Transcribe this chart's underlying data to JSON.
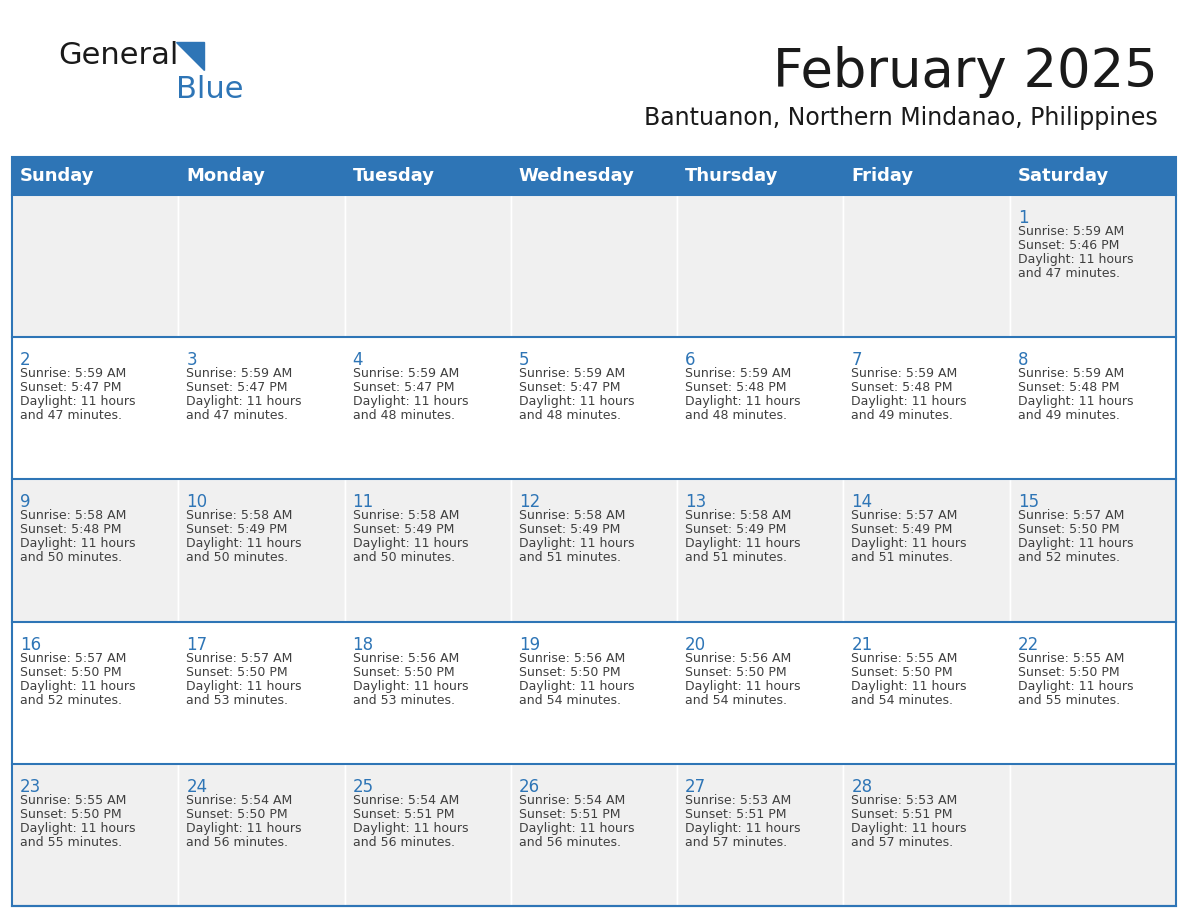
{
  "title": "February 2025",
  "subtitle": "Bantuanon, Northern Mindanao, Philippines",
  "header_bg_color": "#2E75B6",
  "header_text_color": "#FFFFFF",
  "row_bg_colors": [
    "#F0F0F0",
    "#FFFFFF",
    "#F0F0F0",
    "#FFFFFF",
    "#F0F0F0"
  ],
  "day_number_color": "#2E75B6",
  "text_color": "#404040",
  "border_color": "#2E75B6",
  "days_of_week": [
    "Sunday",
    "Monday",
    "Tuesday",
    "Wednesday",
    "Thursday",
    "Friday",
    "Saturday"
  ],
  "calendar": [
    [
      {
        "day": null,
        "sunrise": null,
        "sunset": null,
        "daylight_line1": null,
        "daylight_line2": null
      },
      {
        "day": null,
        "sunrise": null,
        "sunset": null,
        "daylight_line1": null,
        "daylight_line2": null
      },
      {
        "day": null,
        "sunrise": null,
        "sunset": null,
        "daylight_line1": null,
        "daylight_line2": null
      },
      {
        "day": null,
        "sunrise": null,
        "sunset": null,
        "daylight_line1": null,
        "daylight_line2": null
      },
      {
        "day": null,
        "sunrise": null,
        "sunset": null,
        "daylight_line1": null,
        "daylight_line2": null
      },
      {
        "day": null,
        "sunrise": null,
        "sunset": null,
        "daylight_line1": null,
        "daylight_line2": null
      },
      {
        "day": "1",
        "sunrise": "Sunrise: 5:59 AM",
        "sunset": "Sunset: 5:46 PM",
        "daylight_line1": "Daylight: 11 hours",
        "daylight_line2": "and 47 minutes."
      }
    ],
    [
      {
        "day": "2",
        "sunrise": "Sunrise: 5:59 AM",
        "sunset": "Sunset: 5:47 PM",
        "daylight_line1": "Daylight: 11 hours",
        "daylight_line2": "and 47 minutes."
      },
      {
        "day": "3",
        "sunrise": "Sunrise: 5:59 AM",
        "sunset": "Sunset: 5:47 PM",
        "daylight_line1": "Daylight: 11 hours",
        "daylight_line2": "and 47 minutes."
      },
      {
        "day": "4",
        "sunrise": "Sunrise: 5:59 AM",
        "sunset": "Sunset: 5:47 PM",
        "daylight_line1": "Daylight: 11 hours",
        "daylight_line2": "and 48 minutes."
      },
      {
        "day": "5",
        "sunrise": "Sunrise: 5:59 AM",
        "sunset": "Sunset: 5:47 PM",
        "daylight_line1": "Daylight: 11 hours",
        "daylight_line2": "and 48 minutes."
      },
      {
        "day": "6",
        "sunrise": "Sunrise: 5:59 AM",
        "sunset": "Sunset: 5:48 PM",
        "daylight_line1": "Daylight: 11 hours",
        "daylight_line2": "and 48 minutes."
      },
      {
        "day": "7",
        "sunrise": "Sunrise: 5:59 AM",
        "sunset": "Sunset: 5:48 PM",
        "daylight_line1": "Daylight: 11 hours",
        "daylight_line2": "and 49 minutes."
      },
      {
        "day": "8",
        "sunrise": "Sunrise: 5:59 AM",
        "sunset": "Sunset: 5:48 PM",
        "daylight_line1": "Daylight: 11 hours",
        "daylight_line2": "and 49 minutes."
      }
    ],
    [
      {
        "day": "9",
        "sunrise": "Sunrise: 5:58 AM",
        "sunset": "Sunset: 5:48 PM",
        "daylight_line1": "Daylight: 11 hours",
        "daylight_line2": "and 50 minutes."
      },
      {
        "day": "10",
        "sunrise": "Sunrise: 5:58 AM",
        "sunset": "Sunset: 5:49 PM",
        "daylight_line1": "Daylight: 11 hours",
        "daylight_line2": "and 50 minutes."
      },
      {
        "day": "11",
        "sunrise": "Sunrise: 5:58 AM",
        "sunset": "Sunset: 5:49 PM",
        "daylight_line1": "Daylight: 11 hours",
        "daylight_line2": "and 50 minutes."
      },
      {
        "day": "12",
        "sunrise": "Sunrise: 5:58 AM",
        "sunset": "Sunset: 5:49 PM",
        "daylight_line1": "Daylight: 11 hours",
        "daylight_line2": "and 51 minutes."
      },
      {
        "day": "13",
        "sunrise": "Sunrise: 5:58 AM",
        "sunset": "Sunset: 5:49 PM",
        "daylight_line1": "Daylight: 11 hours",
        "daylight_line2": "and 51 minutes."
      },
      {
        "day": "14",
        "sunrise": "Sunrise: 5:57 AM",
        "sunset": "Sunset: 5:49 PM",
        "daylight_line1": "Daylight: 11 hours",
        "daylight_line2": "and 51 minutes."
      },
      {
        "day": "15",
        "sunrise": "Sunrise: 5:57 AM",
        "sunset": "Sunset: 5:50 PM",
        "daylight_line1": "Daylight: 11 hours",
        "daylight_line2": "and 52 minutes."
      }
    ],
    [
      {
        "day": "16",
        "sunrise": "Sunrise: 5:57 AM",
        "sunset": "Sunset: 5:50 PM",
        "daylight_line1": "Daylight: 11 hours",
        "daylight_line2": "and 52 minutes."
      },
      {
        "day": "17",
        "sunrise": "Sunrise: 5:57 AM",
        "sunset": "Sunset: 5:50 PM",
        "daylight_line1": "Daylight: 11 hours",
        "daylight_line2": "and 53 minutes."
      },
      {
        "day": "18",
        "sunrise": "Sunrise: 5:56 AM",
        "sunset": "Sunset: 5:50 PM",
        "daylight_line1": "Daylight: 11 hours",
        "daylight_line2": "and 53 minutes."
      },
      {
        "day": "19",
        "sunrise": "Sunrise: 5:56 AM",
        "sunset": "Sunset: 5:50 PM",
        "daylight_line1": "Daylight: 11 hours",
        "daylight_line2": "and 54 minutes."
      },
      {
        "day": "20",
        "sunrise": "Sunrise: 5:56 AM",
        "sunset": "Sunset: 5:50 PM",
        "daylight_line1": "Daylight: 11 hours",
        "daylight_line2": "and 54 minutes."
      },
      {
        "day": "21",
        "sunrise": "Sunrise: 5:55 AM",
        "sunset": "Sunset: 5:50 PM",
        "daylight_line1": "Daylight: 11 hours",
        "daylight_line2": "and 54 minutes."
      },
      {
        "day": "22",
        "sunrise": "Sunrise: 5:55 AM",
        "sunset": "Sunset: 5:50 PM",
        "daylight_line1": "Daylight: 11 hours",
        "daylight_line2": "and 55 minutes."
      }
    ],
    [
      {
        "day": "23",
        "sunrise": "Sunrise: 5:55 AM",
        "sunset": "Sunset: 5:50 PM",
        "daylight_line1": "Daylight: 11 hours",
        "daylight_line2": "and 55 minutes."
      },
      {
        "day": "24",
        "sunrise": "Sunrise: 5:54 AM",
        "sunset": "Sunset: 5:50 PM",
        "daylight_line1": "Daylight: 11 hours",
        "daylight_line2": "and 56 minutes."
      },
      {
        "day": "25",
        "sunrise": "Sunrise: 5:54 AM",
        "sunset": "Sunset: 5:51 PM",
        "daylight_line1": "Daylight: 11 hours",
        "daylight_line2": "and 56 minutes."
      },
      {
        "day": "26",
        "sunrise": "Sunrise: 5:54 AM",
        "sunset": "Sunset: 5:51 PM",
        "daylight_line1": "Daylight: 11 hours",
        "daylight_line2": "and 56 minutes."
      },
      {
        "day": "27",
        "sunrise": "Sunrise: 5:53 AM",
        "sunset": "Sunset: 5:51 PM",
        "daylight_line1": "Daylight: 11 hours",
        "daylight_line2": "and 57 minutes."
      },
      {
        "day": "28",
        "sunrise": "Sunrise: 5:53 AM",
        "sunset": "Sunset: 5:51 PM",
        "daylight_line1": "Daylight: 11 hours",
        "daylight_line2": "and 57 minutes."
      },
      {
        "day": null,
        "sunrise": null,
        "sunset": null,
        "daylight_line1": null,
        "daylight_line2": null
      }
    ]
  ]
}
